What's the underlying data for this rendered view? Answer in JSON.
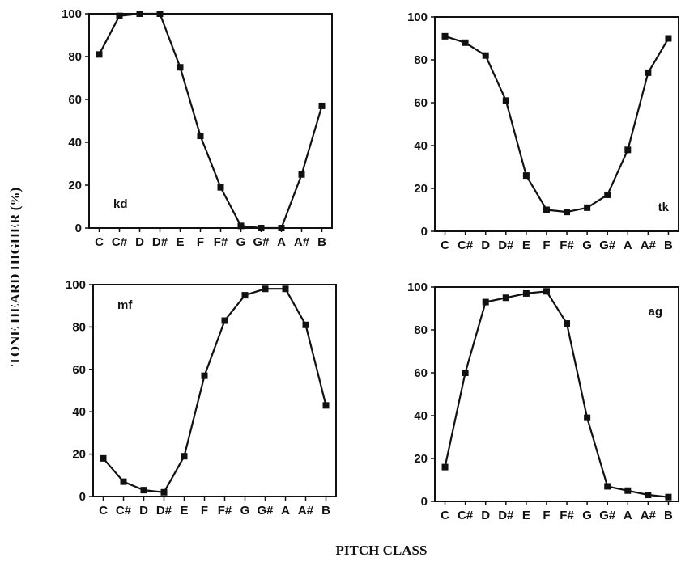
{
  "figure": {
    "ylabel": "TONE HEARD HIGHER (%)",
    "xlabel": "PITCH CLASS"
  },
  "chart_data": [
    {
      "type": "line",
      "panel_label": "kd",
      "categories": [
        "C",
        "C#",
        "D",
        "D#",
        "E",
        "F",
        "F#",
        "G",
        "G#",
        "A",
        "A#",
        "B"
      ],
      "values": [
        81,
        99,
        100,
        100,
        75,
        43,
        19,
        1,
        0,
        0,
        25,
        57
      ],
      "ylim": [
        0,
        100
      ],
      "yticks": [
        0,
        20,
        40,
        60,
        80,
        100
      ],
      "label_position": "bottom-left",
      "grid": false
    },
    {
      "type": "line",
      "panel_label": "tk",
      "categories": [
        "C",
        "C#",
        "D",
        "D#",
        "E",
        "F",
        "F#",
        "G",
        "G#",
        "A",
        "A#",
        "B"
      ],
      "values": [
        91,
        88,
        82,
        61,
        26,
        10,
        9,
        11,
        17,
        38,
        74,
        90
      ],
      "ylim": [
        0,
        100
      ],
      "yticks": [
        0,
        20,
        40,
        60,
        80,
        100
      ],
      "label_position": "bottom-right",
      "grid": false
    },
    {
      "type": "line",
      "panel_label": "mf",
      "categories": [
        "C",
        "C#",
        "D",
        "D#",
        "E",
        "F",
        "F#",
        "G",
        "G#",
        "A",
        "A#",
        "B"
      ],
      "values": [
        18,
        7,
        3,
        2,
        19,
        57,
        83,
        95,
        98,
        98,
        81,
        43
      ],
      "ylim": [
        0,
        100
      ],
      "yticks": [
        0,
        20,
        40,
        60,
        80,
        100
      ],
      "label_position": "top-left",
      "grid": false
    },
    {
      "type": "line",
      "panel_label": "ag",
      "categories": [
        "C",
        "C#",
        "D",
        "D#",
        "E",
        "F",
        "F#",
        "G",
        "G#",
        "A",
        "A#",
        "B"
      ],
      "values": [
        16,
        60,
        93,
        95,
        97,
        98,
        83,
        39,
        7,
        5,
        3,
        2
      ],
      "ylim": [
        0,
        100
      ],
      "yticks": [
        0,
        20,
        40,
        60,
        80,
        100
      ],
      "label_position": "top-right",
      "grid": false
    }
  ]
}
